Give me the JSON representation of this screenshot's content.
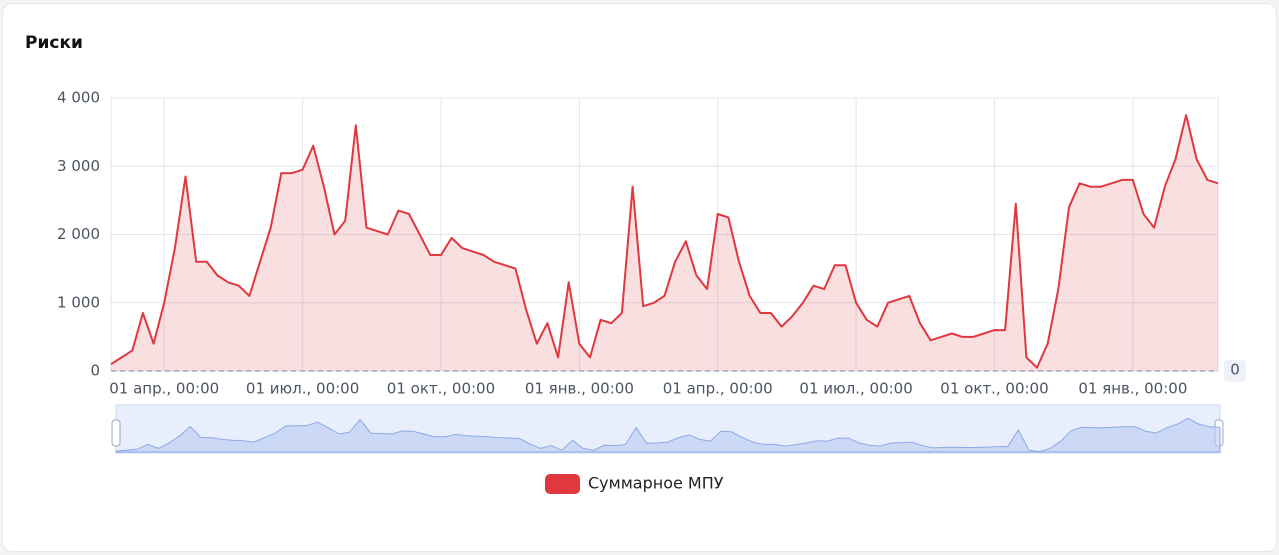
{
  "chart_data": {
    "type": "line",
    "title": "Риски",
    "categories": [
      null,
      null,
      null,
      null,
      null,
      "01 апр., 00:00",
      null,
      null,
      null,
      null,
      null,
      null,
      null,
      null,
      null,
      null,
      null,
      null,
      "01 июл., 00:00",
      null,
      null,
      null,
      null,
      null,
      null,
      null,
      null,
      null,
      null,
      null,
      null,
      "01 окт., 00:00",
      null,
      null,
      null,
      null,
      null,
      null,
      null,
      null,
      null,
      null,
      null,
      null,
      "01 янв., 00:00",
      null,
      null,
      null,
      null,
      null,
      null,
      null,
      null,
      null,
      null,
      null,
      null,
      "01 апр., 00:00",
      null,
      null,
      null,
      null,
      null,
      null,
      null,
      null,
      null,
      null,
      null,
      null,
      "01 июл., 00:00",
      null,
      null,
      null,
      null,
      null,
      null,
      null,
      null,
      null,
      null,
      null,
      null,
      "01 окт., 00:00",
      null,
      null,
      null,
      null,
      null,
      null,
      null,
      null,
      null,
      null,
      null,
      null,
      "01 янв., 00:00",
      null,
      null,
      null,
      null,
      null,
      null,
      null,
      null
    ],
    "series": [
      {
        "name": "Суммарное МПУ",
        "color": "#e0383e",
        "values": [
          100,
          200,
          300,
          850,
          400,
          1000,
          1800,
          2850,
          1600,
          1600,
          1400,
          1300,
          1250,
          1100,
          1600,
          2100,
          2900,
          2900,
          2950,
          3300,
          2700,
          2000,
          2200,
          3600,
          2100,
          2050,
          2000,
          2350,
          2300,
          2000,
          1700,
          1700,
          1950,
          1800,
          1750,
          1700,
          1600,
          1550,
          1500,
          900,
          400,
          700,
          200,
          1300,
          400,
          200,
          750,
          700,
          850,
          2700,
          950,
          1000,
          1100,
          1600,
          1900,
          1400,
          1200,
          2300,
          2250,
          1600,
          1100,
          850,
          850,
          650,
          800,
          1000,
          1250,
          1200,
          1550,
          1550,
          1000,
          750,
          650,
          1000,
          1050,
          1100,
          700,
          450,
          500,
          550,
          500,
          500,
          550,
          600,
          600,
          2450,
          200,
          50,
          400,
          1200,
          2400,
          2750,
          2700,
          2700,
          2750,
          2800,
          2800,
          2300,
          2100,
          2700,
          3100,
          3750,
          3100,
          2800,
          2750
        ]
      }
    ],
    "ylim": [
      0,
      4000
    ],
    "yticks": [
      0,
      {
        "value": 1000,
        "label": "1 000"
      },
      {
        "value": 2000,
        "label": "2 000"
      },
      {
        "value": 3000,
        "label": "3 000"
      },
      {
        "value": 4000,
        "label": "4 000"
      }
    ],
    "markline": 0,
    "grid": true
  }
}
